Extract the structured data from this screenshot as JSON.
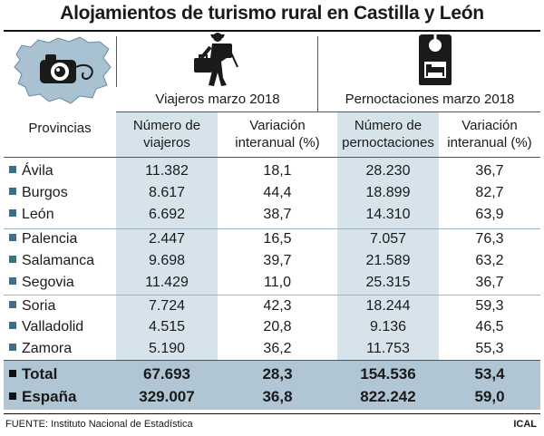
{
  "title": "Alojamientos de turismo rural en Castilla y León",
  "icons": {
    "map": "castilla-leon-map-camera-icon",
    "traveler": "hiker-with-suitcase-icon",
    "hotel": "door-hanger-bed-icon"
  },
  "group_headers": {
    "travelers": "Viajeros marzo 2018",
    "nights": "Pernoctaciones marzo 2018"
  },
  "columns": {
    "province": "Provincias",
    "travelers_line1": "Número de",
    "travelers_line2": "viajeros",
    "var1_line1": "Variación",
    "var1_line2": "interanual (%)",
    "nights_line1": "Número de",
    "nights_line2": "pernoctaciones",
    "var2_line1": "Variación",
    "var2_line2": "interanual (%)"
  },
  "rows": [
    {
      "name": "Ávila",
      "travelers": "11.382",
      "var1": "18,1",
      "nights": "28.230",
      "var2": "36,7"
    },
    {
      "name": "Burgos",
      "travelers": "8.617",
      "var1": "44,4",
      "nights": "18.899",
      "var2": "82,7"
    },
    {
      "name": "León",
      "travelers": "6.692",
      "var1": "38,7",
      "nights": "14.310",
      "var2": "63,9"
    },
    {
      "name": "Palencia",
      "travelers": "2.447",
      "var1": "16,5",
      "nights": "7.057",
      "var2": "76,3"
    },
    {
      "name": "Salamanca",
      "travelers": "9.698",
      "var1": "39,7",
      "nights": "21.589",
      "var2": "63,2"
    },
    {
      "name": "Segovia",
      "travelers": "11.429",
      "var1": "11,0",
      "nights": "25.315",
      "var2": "36,7"
    },
    {
      "name": "Soria",
      "travelers": "7.724",
      "var1": "42,3",
      "nights": "18.244",
      "var2": "59,3"
    },
    {
      "name": "Valladolid",
      "travelers": "4.515",
      "var1": "20,8",
      "nights": "9.136",
      "var2": "46,5"
    },
    {
      "name": "Zamora",
      "travelers": "5.190",
      "var1": "36,2",
      "nights": "11.753",
      "var2": "55,3"
    }
  ],
  "totals": [
    {
      "name": "Total",
      "travelers": "67.693",
      "var1": "28,3",
      "nights": "154.536",
      "var2": "53,4"
    },
    {
      "name": "España",
      "travelers": "329.007",
      "var1": "36,8",
      "nights": "822.242",
      "var2": "59,0"
    }
  ],
  "footer": {
    "source": "FUENTE: Instituto Nacional de Estadística",
    "credit": "ICAL"
  },
  "colors": {
    "shade": "#d7e3eb",
    "total_band": "#b0c6d4",
    "bullet": "#3d6f86",
    "map_fill": "#a9c2d1"
  }
}
